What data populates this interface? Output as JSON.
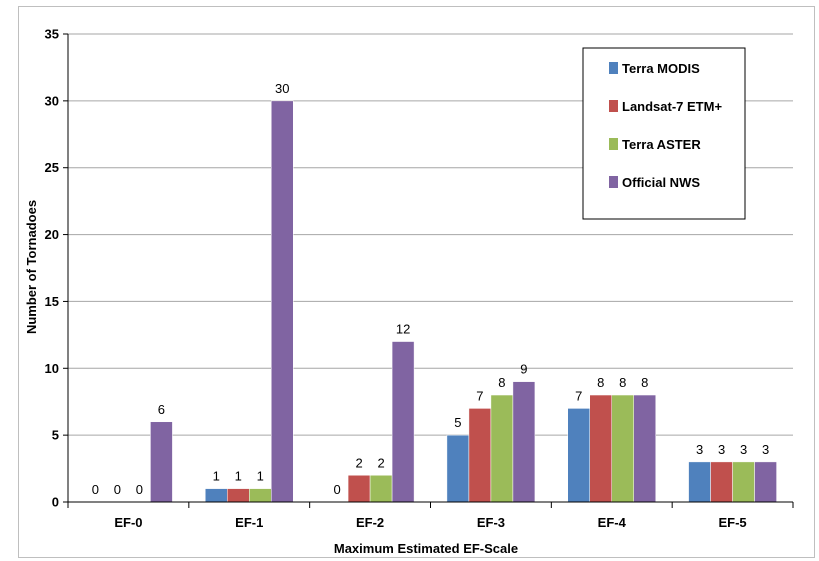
{
  "chart_data": {
    "type": "bar",
    "title": "",
    "xlabel": "Maximum Estimated EF-Scale",
    "ylabel": "Number of Tornadoes",
    "ylim": [
      0,
      35
    ],
    "yticks": [
      0,
      5,
      10,
      15,
      20,
      25,
      30,
      35
    ],
    "grid": true,
    "legend_position": "top-right",
    "categories": [
      "EF-0",
      "EF-1",
      "EF-2",
      "EF-3",
      "EF-4",
      "EF-5"
    ],
    "series": [
      {
        "name": "Terra MODIS",
        "color": "#4f81bd",
        "values": [
          0,
          1,
          null,
          5,
          7,
          3
        ]
      },
      {
        "name": "Landsat-7 ETM+",
        "color": "#c0504d",
        "values": [
          0,
          1,
          2,
          7,
          8,
          3
        ]
      },
      {
        "name": "Terra ASTER",
        "color": "#9bbb59",
        "values": [
          0,
          1,
          2,
          8,
          8,
          3
        ]
      },
      {
        "name": "Official NWS",
        "color": "#8064a2",
        "values": [
          6,
          30,
          12,
          9,
          8,
          3
        ]
      }
    ],
    "data_labels": [
      [
        "0",
        "0",
        "0",
        "6"
      ],
      [
        "1",
        "1",
        "1",
        "30"
      ],
      [
        "0",
        "2",
        "2",
        "12"
      ],
      [
        "5",
        "7",
        "8",
        "9"
      ],
      [
        "7",
        "8",
        "8",
        "8"
      ],
      [
        "3",
        "3",
        "3",
        "3"
      ]
    ]
  }
}
